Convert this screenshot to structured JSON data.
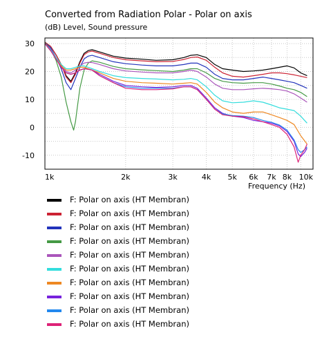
{
  "chart_data": {
    "type": "line",
    "title": "Converted from Radiation Polar - Polar on axis",
    "subtitle": "(dB)  Level, Sound pressure",
    "xlabel": "Frequency  (Hz)",
    "ylabel": "",
    "x_scale": "log",
    "xlim": [
      1000,
      10000
    ],
    "ylim": [
      -15,
      32
    ],
    "x_ticks": [
      {
        "value": 1000,
        "label": "1k"
      },
      {
        "value": 2000,
        "label": "2k"
      },
      {
        "value": 3000,
        "label": "3k"
      },
      {
        "value": 4000,
        "label": "4k"
      },
      {
        "value": 5000,
        "label": "5k"
      },
      {
        "value": 6000,
        "label": "6k"
      },
      {
        "value": 7000,
        "label": "7k"
      },
      {
        "value": 8000,
        "label": "8k"
      },
      {
        "value": 10000,
        "label": "10k"
      }
    ],
    "y_ticks": [
      30,
      20,
      10,
      0,
      -10
    ],
    "grid": true,
    "legend_position": "bottom",
    "series": [
      {
        "name": "F: Polar on axis  (HT Membran)",
        "color": "#000000",
        "x": [
          1000,
          1050,
          1100,
          1150,
          1200,
          1250,
          1300,
          1350,
          1400,
          1450,
          1500,
          1600,
          1800,
          2000,
          2300,
          2600,
          3000,
          3300,
          3500,
          3700,
          4000,
          4300,
          4600,
          5000,
          5500,
          6000,
          6500,
          7000,
          7500,
          8000,
          8500,
          9000,
          9500
        ],
        "y": [
          30.5,
          29.0,
          26.0,
          22.5,
          18.5,
          16.5,
          19.5,
          23.5,
          26.5,
          27.5,
          27.8,
          27.0,
          25.5,
          24.8,
          24.4,
          24.0,
          24.2,
          25.0,
          25.8,
          26.0,
          25.0,
          22.5,
          21.0,
          20.5,
          20.0,
          20.2,
          20.5,
          21.0,
          21.5,
          22.0,
          21.3,
          19.5,
          18.5
        ]
      },
      {
        "name": "F: Polar on axis  (HT Membran)",
        "color": "#cc2233",
        "x": [
          1000,
          1050,
          1100,
          1150,
          1200,
          1250,
          1300,
          1350,
          1400,
          1450,
          1500,
          1600,
          1800,
          2000,
          2300,
          2600,
          3000,
          3300,
          3500,
          3700,
          4000,
          4300,
          4600,
          5000,
          5500,
          6000,
          6500,
          7000,
          7500,
          8000,
          8500,
          9000,
          9500
        ],
        "y": [
          30.5,
          29.0,
          26.0,
          22.5,
          18.0,
          16.0,
          19.0,
          23.0,
          26.0,
          27.0,
          27.3,
          26.5,
          25.0,
          24.2,
          23.8,
          23.5,
          23.6,
          24.3,
          25.0,
          25.2,
          24.0,
          21.5,
          19.5,
          18.3,
          18.0,
          18.5,
          19.0,
          19.5,
          19.5,
          19.2,
          18.8,
          18.3,
          17.8
        ]
      },
      {
        "name": "F: Polar on axis  (HT Membran)",
        "color": "#2233bb",
        "x": [
          1000,
          1050,
          1100,
          1150,
          1200,
          1250,
          1300,
          1350,
          1400,
          1450,
          1500,
          1600,
          1800,
          2000,
          2300,
          2600,
          3000,
          3300,
          3500,
          3700,
          4000,
          4300,
          4600,
          5000,
          5500,
          6000,
          6500,
          7000,
          7500,
          8000,
          8500,
          9000,
          9500
        ],
        "y": [
          30.3,
          28.5,
          25.0,
          21.0,
          16.0,
          13.5,
          17.5,
          21.5,
          24.5,
          25.5,
          25.8,
          25.0,
          23.5,
          22.8,
          22.3,
          22.0,
          22.0,
          22.5,
          23.0,
          23.0,
          21.5,
          19.0,
          17.5,
          17.0,
          17.0,
          17.5,
          18.0,
          17.5,
          17.0,
          16.5,
          16.0,
          15.0,
          14.0
        ]
      },
      {
        "name": "F: Polar on axis  (HT Membran)",
        "color": "#449944",
        "x": [
          1000,
          1050,
          1100,
          1150,
          1200,
          1250,
          1280,
          1300,
          1320,
          1350,
          1400,
          1450,
          1500,
          1600,
          1800,
          2000,
          2300,
          2600,
          3000,
          3300,
          3500,
          3700,
          4000,
          4300,
          4600,
          5000,
          5500,
          6000,
          6500,
          7000,
          7500,
          8000,
          8500,
          9000,
          9500
        ],
        "y": [
          30.3,
          28.0,
          24.0,
          18.0,
          9.0,
          2.0,
          -1.0,
          2.0,
          7.0,
          14.0,
          20.5,
          23.0,
          23.8,
          23.3,
          21.8,
          21.0,
          20.6,
          20.3,
          20.0,
          20.5,
          21.0,
          21.0,
          19.5,
          17.5,
          16.5,
          16.0,
          15.8,
          16.0,
          16.0,
          15.5,
          14.8,
          14.0,
          13.5,
          12.5,
          11.0
        ]
      },
      {
        "name": "F: Polar on axis  (HT Membran)",
        "color": "#aa55bb",
        "x": [
          1000,
          1050,
          1100,
          1150,
          1200,
          1250,
          1300,
          1350,
          1400,
          1450,
          1500,
          1600,
          1800,
          2000,
          2300,
          2600,
          3000,
          3300,
          3500,
          3700,
          4000,
          4300,
          4600,
          5000,
          5500,
          6000,
          6500,
          7000,
          7500,
          8000,
          8500,
          9000,
          9500
        ],
        "y": [
          30.0,
          28.0,
          25.0,
          22.0,
          20.0,
          19.5,
          20.5,
          22.0,
          23.0,
          23.3,
          23.2,
          22.5,
          21.0,
          20.2,
          19.8,
          19.5,
          19.5,
          20.0,
          20.5,
          20.0,
          18.0,
          15.5,
          14.0,
          13.5,
          13.5,
          13.8,
          14.0,
          13.8,
          13.5,
          13.0,
          12.0,
          10.5,
          9.0
        ]
      },
      {
        "name": "F: Polar on axis  (HT Membran)",
        "color": "#33dddd",
        "x": [
          1000,
          1050,
          1100,
          1150,
          1200,
          1250,
          1300,
          1350,
          1400,
          1450,
          1500,
          1600,
          1800,
          2000,
          2300,
          2600,
          3000,
          3300,
          3500,
          3700,
          4000,
          4300,
          4600,
          5000,
          5500,
          6000,
          6500,
          7000,
          7500,
          8000,
          8500,
          9000,
          9500
        ],
        "y": [
          30.0,
          27.8,
          25.0,
          22.5,
          21.0,
          21.0,
          21.5,
          22.0,
          22.0,
          21.5,
          21.0,
          20.0,
          18.5,
          17.8,
          17.5,
          17.3,
          17.0,
          17.2,
          17.5,
          17.0,
          14.5,
          11.5,
          9.5,
          8.8,
          9.0,
          9.5,
          9.0,
          8.0,
          7.0,
          6.5,
          6.0,
          4.0,
          1.5
        ]
      },
      {
        "name": "F: Polar on axis  (HT Membran)",
        "color": "#ee8822",
        "x": [
          1000,
          1050,
          1100,
          1150,
          1200,
          1250,
          1300,
          1350,
          1400,
          1450,
          1500,
          1600,
          1800,
          2000,
          2300,
          2600,
          3000,
          3300,
          3500,
          3700,
          4000,
          4300,
          4600,
          5000,
          5500,
          6000,
          6500,
          7000,
          7500,
          8000,
          8500,
          9000,
          9500
        ],
        "y": [
          30.0,
          27.5,
          24.5,
          22.0,
          20.5,
          20.5,
          21.0,
          21.5,
          21.5,
          21.0,
          20.5,
          19.5,
          17.5,
          16.5,
          16.0,
          15.8,
          15.5,
          15.8,
          16.0,
          15.5,
          12.5,
          9.0,
          7.0,
          5.5,
          5.0,
          5.5,
          5.5,
          4.5,
          3.5,
          2.5,
          1.0,
          -3.0,
          -6.0
        ]
      },
      {
        "name": "F: Polar on axis  (HT Membran)",
        "color": "#7722dd",
        "x": [
          1000,
          1050,
          1100,
          1150,
          1200,
          1250,
          1300,
          1350,
          1400,
          1450,
          1500,
          1600,
          1800,
          2000,
          2300,
          2600,
          3000,
          3300,
          3500,
          3700,
          4000,
          4300,
          4600,
          5000,
          5500,
          6000,
          6500,
          7000,
          7500,
          8000,
          8500,
          8800,
          9000,
          9300,
          9500
        ],
        "y": [
          30.0,
          27.5,
          24.5,
          21.5,
          19.5,
          19.0,
          19.5,
          20.5,
          21.0,
          20.8,
          20.5,
          19.0,
          16.5,
          15.0,
          14.5,
          14.3,
          14.5,
          15.0,
          15.0,
          14.0,
          10.5,
          7.0,
          5.0,
          4.0,
          3.5,
          2.5,
          2.0,
          1.5,
          0.5,
          -1.5,
          -5.0,
          -9.5,
          -10.5,
          -9.0,
          -7.5
        ]
      },
      {
        "name": "F: Polar on axis  (HT Membran)",
        "color": "#2288ee",
        "x": [
          1000,
          1050,
          1100,
          1150,
          1200,
          1250,
          1300,
          1350,
          1400,
          1450,
          1500,
          1600,
          1800,
          2000,
          2300,
          2600,
          3000,
          3300,
          3500,
          3700,
          4000,
          4300,
          4600,
          5000,
          5500,
          6000,
          6500,
          7000,
          7500,
          8000,
          8500,
          8800,
          9000,
          9300,
          9500
        ],
        "y": [
          30.0,
          27.5,
          24.5,
          21.5,
          19.5,
          19.0,
          19.5,
          20.5,
          21.0,
          20.8,
          20.5,
          18.5,
          16.0,
          14.5,
          14.0,
          14.0,
          14.0,
          14.5,
          14.5,
          13.5,
          10.0,
          6.5,
          4.8,
          4.2,
          4.0,
          3.5,
          2.5,
          1.8,
          0.8,
          -1.0,
          -4.5,
          -8.0,
          -9.0,
          -8.0,
          -7.0
        ]
      },
      {
        "name": "F: Polar on axis  (HT Membran)",
        "color": "#dd2277",
        "x": [
          1000,
          1050,
          1100,
          1150,
          1200,
          1250,
          1300,
          1350,
          1400,
          1450,
          1500,
          1600,
          1800,
          2000,
          2300,
          2600,
          3000,
          3300,
          3500,
          3700,
          4000,
          4300,
          4600,
          5000,
          5500,
          6000,
          6500,
          7000,
          7500,
          8000,
          8500,
          8800,
          9000,
          9300,
          9500
        ],
        "y": [
          30.0,
          27.5,
          24.5,
          21.5,
          19.5,
          19.0,
          19.5,
          20.5,
          21.0,
          20.8,
          20.5,
          18.5,
          16.0,
          14.0,
          13.5,
          13.5,
          13.8,
          14.5,
          14.5,
          13.5,
          10.0,
          6.5,
          4.5,
          4.0,
          3.8,
          3.0,
          2.0,
          1.0,
          0.0,
          -2.5,
          -7.0,
          -12.5,
          -10.0,
          -8.0,
          -6.0
        ]
      }
    ]
  }
}
